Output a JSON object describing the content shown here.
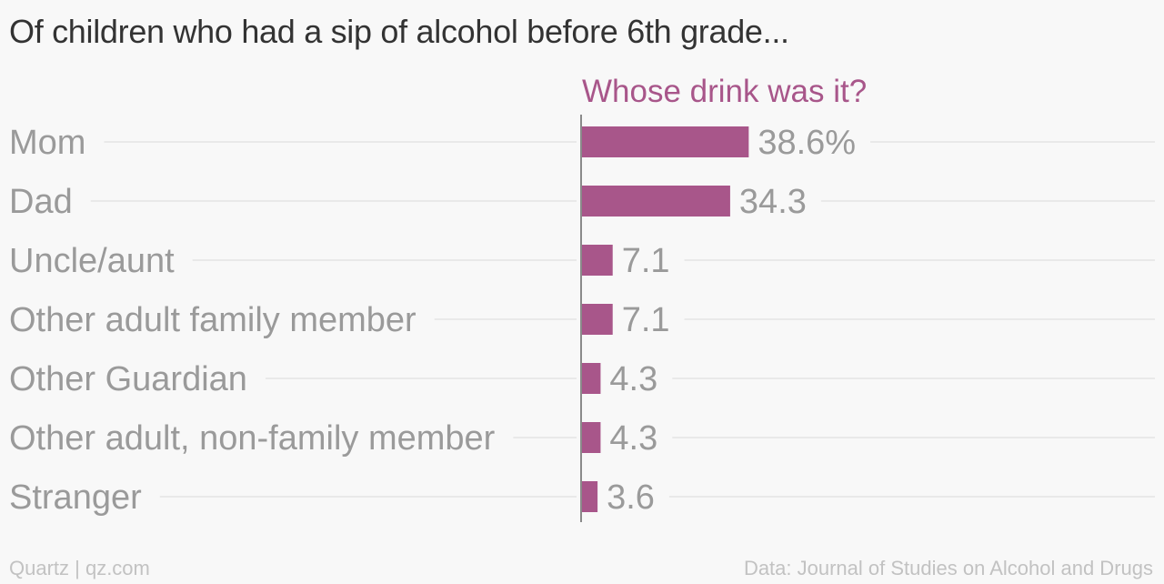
{
  "title": "Of children who had a sip of alcohol before 6th grade...",
  "footer": {
    "source_left": "Quartz | qz.com",
    "source_right": "Data: Journal of Studies on Alcohol and Drugs"
  },
  "colors": {
    "bar": "#a8568a",
    "subtitle": "#a8568a",
    "label": "#9a9a9a",
    "grid": "#e4e4e4",
    "axis": "#8a8a8a"
  },
  "chart_data": {
    "type": "bar",
    "orientation": "horizontal",
    "subtitle": "Whose drink was it?",
    "categories": [
      "Mom",
      "Dad",
      "Uncle/aunt",
      "Other adult family member",
      "Other Guardian",
      "Other adult, non-family member",
      "Stranger"
    ],
    "values": [
      38.6,
      34.3,
      7.1,
      7.1,
      4.3,
      4.3,
      3.6
    ],
    "value_labels": [
      "38.6%",
      "34.3",
      "7.1",
      "7.1",
      "4.3",
      "4.3",
      "3.6"
    ],
    "xlim": [
      0,
      100
    ],
    "grid": true,
    "legend": false
  }
}
